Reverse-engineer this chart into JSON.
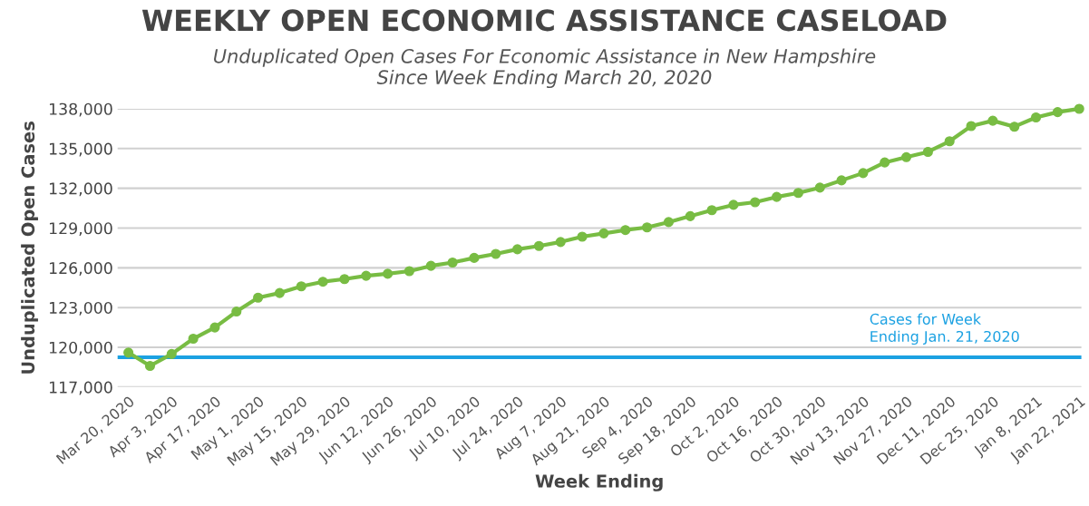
{
  "chart_data": {
    "type": "line",
    "title": "WEEKLY OPEN ECONOMIC ASSISTANCE CASELOAD",
    "subtitle": "Unduplicated Open Cases For Economic Assistance in New Hampshire\nSince Week Ending March 20, 2020",
    "xlabel": "Week Ending",
    "ylabel": "Unduplicated Open Cases",
    "categories": [
      "Mar 20, 2020",
      null,
      "Apr 3, 2020",
      null,
      "Apr 17, 2020",
      null,
      "May 1, 2020",
      null,
      "May 15, 2020",
      null,
      "May 29, 2020",
      null,
      "Jun 12, 2020",
      null,
      "Jun 26, 2020",
      null,
      "Jul 10, 2020",
      null,
      "Jul 24, 2020",
      null,
      "Aug 7, 2020",
      null,
      "Aug 21, 2020",
      null,
      "Sep 4, 2020",
      null,
      "Sep 18, 2020",
      null,
      "Oct 2, 2020",
      null,
      "Oct 16, 2020",
      null,
      "Oct 30, 2020",
      null,
      "Nov 13, 2020",
      null,
      "Nov 27, 2020",
      null,
      "Dec 11, 2020",
      null,
      "Dec 25, 2020",
      null,
      "Jan 8, 2021",
      null,
      "Jan 22, 2021"
    ],
    "series": [
      {
        "color": "#78bc43",
        "values": [
          119600,
          118600,
          119500,
          120650,
          121500,
          122700,
          123750,
          124100,
          124600,
          124950,
          125150,
          125400,
          125550,
          125750,
          126150,
          126400,
          126750,
          127050,
          127400,
          127650,
          127950,
          128350,
          128600,
          128850,
          129050,
          129450,
          129900,
          130350,
          130750,
          130950,
          131350,
          131650,
          132050,
          132600,
          133150,
          133950,
          134350,
          134750,
          135550,
          136700,
          137100,
          136650,
          137350,
          137750,
          138000
        ]
      }
    ],
    "marker": "circle",
    "line_style": "solid",
    "ylim": [
      117000,
      138000
    ],
    "yticks": [
      {
        "value": 117000,
        "label": "117,000"
      },
      {
        "value": 120000,
        "label": "120,000"
      },
      {
        "value": 123000,
        "label": "123,000"
      },
      {
        "value": 126000,
        "label": "126,000"
      },
      {
        "value": 129000,
        "label": "129,000"
      },
      {
        "value": 132000,
        "label": "132,000"
      },
      {
        "value": 135000,
        "label": "135,000"
      },
      {
        "value": 138000,
        "label": "138,000"
      }
    ],
    "grid": "y",
    "ref_lines": [
      {
        "axis": "y",
        "value": 119250,
        "label": "Cases for Week\nEnding Jan. 21, 2020",
        "color": "#1ba1e2",
        "line_style": "solid"
      }
    ]
  }
}
